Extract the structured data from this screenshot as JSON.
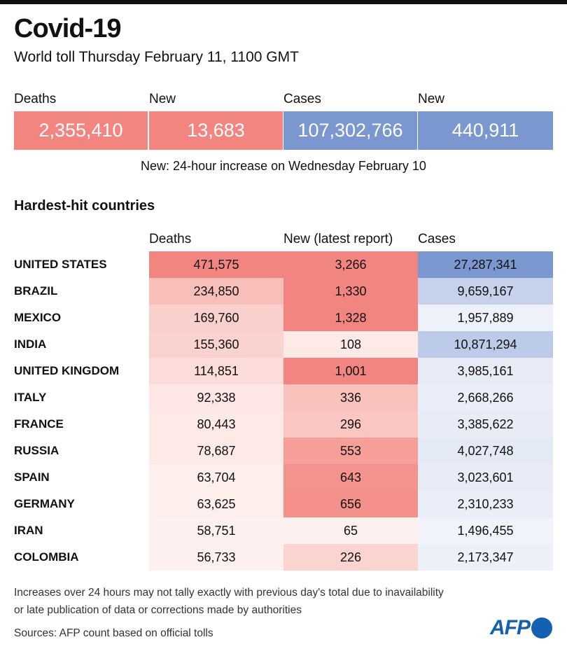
{
  "title": "Covid-19",
  "subtitle": "World toll Thursday February 11, 1100 GMT",
  "totals": [
    {
      "label": "Deaths",
      "value": "2,355,410",
      "color": "#f38580"
    },
    {
      "label": "New",
      "value": "13,683",
      "color": "#f38580"
    },
    {
      "label": "Cases",
      "value": "107,302,766",
      "color": "#7a98cf"
    },
    {
      "label": "New",
      "value": "440,911",
      "color": "#7a98cf"
    }
  ],
  "note": "New: 24-hour increase on Wednesday February 10",
  "section_title": "Hardest-hit countries",
  "chart_data": {
    "type": "table",
    "title": "Hardest-hit countries",
    "columns": [
      "Deaths",
      "New (latest report)",
      "Cases"
    ],
    "rows": [
      {
        "country": "UNITED STATES",
        "deaths": "471,575",
        "new": "3,266",
        "cases": "27,287,341",
        "colors": [
          "#f38580",
          "#f38580",
          "#7a98cf"
        ]
      },
      {
        "country": "BRAZIL",
        "deaths": "234,850",
        "new": "1,330",
        "cases": "9,659,167",
        "colors": [
          "#f8bfba",
          "#f38580",
          "#c6d1ec"
        ]
      },
      {
        "country": "MEXICO",
        "deaths": "169,760",
        "new": "1,328",
        "cases": "1,957,889",
        "colors": [
          "#fad0cc",
          "#f38580",
          "#eef1f9"
        ]
      },
      {
        "country": "INDIA",
        "deaths": "155,360",
        "new": "108",
        "cases": "10,871,294",
        "colors": [
          "#fad3cf",
          "#fde9e6",
          "#bccbe8"
        ]
      },
      {
        "country": "UNITED KINGDOM",
        "deaths": "114,851",
        "new": "1,001",
        "cases": "3,985,161",
        "colors": [
          "#fbdcd8",
          "#f38580",
          "#e6ebf6"
        ]
      },
      {
        "country": "ITALY",
        "deaths": "92,338",
        "new": "336",
        "cases": "2,668,266",
        "colors": [
          "#fde6e3",
          "#f9c2bd",
          "#eaeef8"
        ]
      },
      {
        "country": "FRANCE",
        "deaths": "80,443",
        "new": "296",
        "cases": "3,385,622",
        "colors": [
          "#fde9e6",
          "#f9c6c1",
          "#e7ecf6"
        ]
      },
      {
        "country": "RUSSIA",
        "deaths": "78,687",
        "new": "553",
        "cases": "4,027,748",
        "colors": [
          "#fde9e6",
          "#f69f99",
          "#e3e9f5"
        ]
      },
      {
        "country": "SPAIN",
        "deaths": "63,704",
        "new": "643",
        "cases": "3,023,601",
        "colors": [
          "#feeeec",
          "#f4938d",
          "#e8ecf7"
        ]
      },
      {
        "country": "GERMANY",
        "deaths": "63,625",
        "new": "656",
        "cases": "2,310,233",
        "colors": [
          "#feeeec",
          "#f4918b",
          "#eaeef8"
        ]
      },
      {
        "country": "IRAN",
        "deaths": "58,751",
        "new": "65",
        "cases": "1,496,455",
        "colors": [
          "#fef0ee",
          "#fef0ee",
          "#f0f3fa"
        ]
      },
      {
        "country": "COLOMBIA",
        "deaths": "56,733",
        "new": "226",
        "cases": "2,173,347",
        "colors": [
          "#fef0ee",
          "#fbd4d0",
          "#ecf0f8"
        ]
      }
    ]
  },
  "footnote_1": "Increases over 24 hours may not tally exactly with previous day's total due to inavailability",
  "footnote_2": "or late publication of data or corrections made by authorities",
  "sources": "Sources: AFP count based on official tolls",
  "logo": "AFP"
}
